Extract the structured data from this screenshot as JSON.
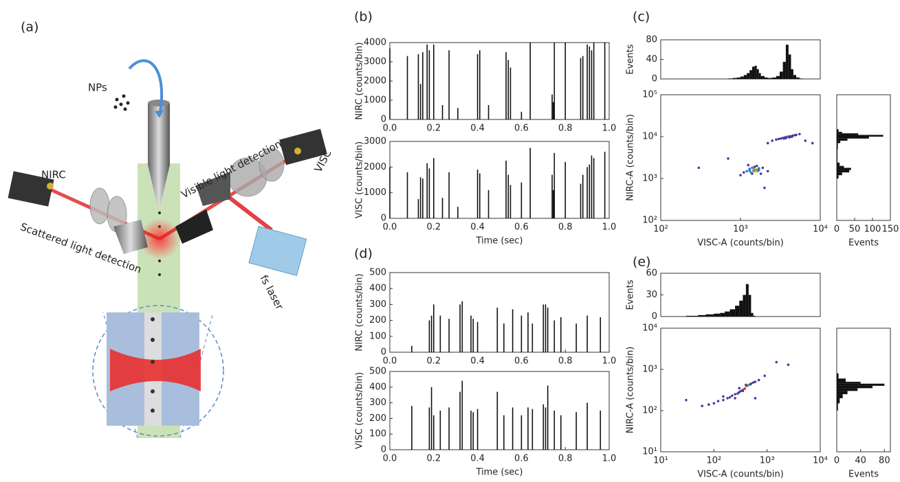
{
  "figure": {
    "panel_labels": [
      "(a)",
      "(b)",
      "(c)",
      "(d)",
      "(e)"
    ]
  },
  "diagram": {
    "labels": [
      "NPs",
      "NIRC",
      "Scattered light detection",
      "Visible light detection",
      "VISC",
      "fs laser"
    ]
  },
  "chart_data": [
    {
      "type": "stem",
      "color": "#111",
      "ylabel": "NIRC (counts/bin)",
      "x": [
        0.0,
        0.08,
        0.13,
        0.14,
        0.15,
        0.17,
        0.18,
        0.2,
        0.24,
        0.27,
        0.31,
        0.4,
        0.41,
        0.45,
        0.53,
        0.54,
        0.55,
        0.6,
        0.64,
        0.74,
        0.745,
        0.75,
        0.8,
        0.87,
        0.88,
        0.9,
        0.91,
        0.92,
        0.93,
        0.98
      ],
      "values": [
        3700,
        3300,
        3400,
        1850,
        3500,
        3900,
        3600,
        3900,
        750,
        3600,
        600,
        3400,
        3600,
        750,
        3500,
        3100,
        2700,
        400,
        4000,
        1300,
        900,
        4000,
        4000,
        3200,
        3300,
        3900,
        3800,
        3600,
        4000,
        4000
      ],
      "xlim": [
        0,
        1
      ],
      "xticks": [
        {
          "value": 0,
          "label": "0.0"
        },
        {
          "value": 0.2,
          "label": "0.2"
        },
        {
          "value": 0.4,
          "label": "0.4"
        },
        {
          "value": 0.6,
          "label": "0.6"
        },
        {
          "value": 0.8,
          "label": "0.8"
        },
        {
          "value": 1,
          "label": "1.0"
        }
      ],
      "ylim": [
        0,
        4000
      ],
      "yticks": [
        0,
        1000,
        2000,
        3000,
        4000
      ]
    },
    {
      "type": "stem",
      "color": "#111",
      "ylabel": "VISC (counts/bin)",
      "xlabel": "Time (sec)",
      "x": [
        0.0,
        0.08,
        0.13,
        0.14,
        0.15,
        0.17,
        0.18,
        0.2,
        0.24,
        0.27,
        0.31,
        0.4,
        0.41,
        0.45,
        0.53,
        0.54,
        0.55,
        0.6,
        0.64,
        0.74,
        0.745,
        0.75,
        0.8,
        0.87,
        0.88,
        0.9,
        0.91,
        0.92,
        0.93,
        0.98
      ],
      "values": [
        2000,
        1800,
        750,
        1600,
        1550,
        2150,
        1950,
        2350,
        800,
        1800,
        450,
        1900,
        1750,
        1100,
        2250,
        1700,
        1300,
        1400,
        2750,
        1700,
        1100,
        2550,
        2200,
        1350,
        1700,
        2000,
        2100,
        2450,
        2350,
        2600
      ],
      "xlim": [
        0,
        1
      ],
      "xticks": [
        {
          "value": 0,
          "label": "0.0"
        },
        {
          "value": 0.2,
          "label": "0.2"
        },
        {
          "value": 0.4,
          "label": "0.4"
        },
        {
          "value": 0.6,
          "label": "0.6"
        },
        {
          "value": 0.8,
          "label": "0.8"
        },
        {
          "value": 1,
          "label": "1.0"
        }
      ],
      "ylim": [
        0,
        3000
      ],
      "yticks": [
        0,
        1000,
        2000,
        3000
      ]
    },
    {
      "type": "histogram",
      "color": "#111",
      "ylabel": "Events",
      "xlog": true,
      "bins": [
        700,
        800,
        900,
        1000,
        1100,
        1200,
        1300,
        1400,
        1500,
        1600,
        1700,
        1800,
        2000,
        2200,
        2500,
        2800,
        3100,
        3400,
        3700,
        4000,
        4300,
        4600,
        5000,
        5500,
        6000
      ],
      "values": [
        1,
        2,
        3,
        5,
        8,
        12,
        18,
        25,
        27,
        20,
        12,
        6,
        3,
        2,
        3,
        6,
        15,
        35,
        70,
        50,
        20,
        8,
        3,
        1
      ],
      "xlim": [
        100,
        10000
      ],
      "ylim": [
        0,
        80
      ],
      "yticks": [
        0,
        40,
        80
      ]
    },
    {
      "type": "scatter",
      "xlabel": "VISC-A (counts/bin)",
      "ylabel": "NIRC-A (counts/bin)",
      "xlog": true,
      "ylog": true,
      "x": [
        1200,
        1300,
        1350,
        1400,
        1450,
        1500,
        1520,
        1550,
        1600,
        1650,
        1700,
        1400,
        1500,
        1600,
        1300,
        1550,
        1450,
        1700,
        1100,
        1900,
        1000,
        2200,
        1250,
        1800,
        2500,
        2800,
        3000,
        3200,
        3400,
        3600,
        3800,
        4000,
        4200,
        4500,
        4800,
        5000,
        3500,
        3900,
        4100,
        4400,
        5500,
        6500,
        2200,
        3700,
        300,
        700,
        8000,
        2000
      ],
      "values": [
        1500,
        1700,
        1400,
        1800,
        1600,
        1650,
        1550,
        1700,
        1600,
        1500,
        1750,
        1300,
        1900,
        2000,
        1550,
        1450,
        1500,
        1600,
        1400,
        1800,
        1200,
        1500,
        2100,
        1300,
        8000,
        8500,
        8800,
        9000,
        9300,
        9500,
        9800,
        10000,
        10200,
        10500,
        10800,
        11000,
        9000,
        10000,
        9600,
        9900,
        11500,
        8000,
        7000,
        9200,
        1800,
        3000,
        7000,
        600
      ],
      "colors": [
        "#2f6fd0",
        "#2f6fd0",
        "#2ab0a0",
        "#2f6fd0",
        "#f0d020",
        "#e03020",
        "#e03020",
        "#f0d020",
        "#2ab0a0",
        "#2ab0a0",
        "#2f6fd0",
        "#4b3a9a",
        "#4b3a9a",
        "#4b3a9a",
        "#2f6fd0",
        "#f0d020",
        "#2ab0a0",
        "#2f6fd0",
        "#4b3a9a",
        "#4b3a9a",
        "#4b3a9a",
        "#4b3a9a",
        "#4b3a9a",
        "#4b3a9a",
        "#4b3a9a",
        "#4b3a9a",
        "#4b3a9a",
        "#4b3a9a",
        "#4b3a9a",
        "#4b3a9a",
        "#4b3a9a",
        "#2f6fd0",
        "#4b3a9a",
        "#4b3a9a",
        "#4b3a9a",
        "#4b3a9a",
        "#4b3a9a",
        "#2f6fd0",
        "#4b3a9a",
        "#4b3a9a",
        "#4b3a9a",
        "#4b3a9a",
        "#4b3a9a",
        "#4b3a9a",
        "#4b3a9a",
        "#4b3a9a",
        "#4b3a9a",
        "#4b3a9a"
      ],
      "xlim": [
        100,
        10000
      ],
      "xticks": [
        {
          "value": 100,
          "label": "10²"
        },
        {
          "value": 1000,
          "label": "10³"
        },
        {
          "value": 10000,
          "label": "10⁴"
        }
      ],
      "ylim": [
        100,
        100000
      ],
      "yticks": [
        {
          "value": 100,
          "label": "10²"
        },
        {
          "value": 1000,
          "label": "10³"
        },
        {
          "value": 10000,
          "label": "10⁴"
        },
        {
          "value": 100000,
          "label": "10⁵"
        }
      ]
    },
    {
      "type": "histogram",
      "orientation": "horizontal",
      "color": "#111",
      "xlabel": "Events",
      "ylog": true,
      "bins": [
        1000,
        1200,
        1400,
        1600,
        1800,
        2000,
        2400,
        5000,
        7000,
        8000,
        9000,
        10000,
        11000,
        12000,
        13000,
        15000
      ],
      "values": [
        5,
        15,
        35,
        40,
        20,
        8,
        2,
        3,
        10,
        30,
        90,
        130,
        60,
        15,
        5
      ],
      "xlim": [
        0,
        150
      ],
      "xticks": [
        0,
        50,
        100,
        150
      ],
      "ylim": [
        100,
        100000
      ]
    },
    {
      "type": "stem",
      "color": "#111",
      "ylabel": "NIRC (counts/bin)",
      "x": [
        0.1,
        0.18,
        0.19,
        0.2,
        0.23,
        0.27,
        0.32,
        0.33,
        0.37,
        0.38,
        0.4,
        0.49,
        0.52,
        0.56,
        0.6,
        0.63,
        0.65,
        0.7,
        0.71,
        0.72,
        0.75,
        0.78,
        0.85,
        0.9,
        0.96
      ],
      "values": [
        40,
        200,
        230,
        300,
        230,
        210,
        300,
        320,
        230,
        210,
        190,
        280,
        180,
        270,
        230,
        250,
        180,
        300,
        300,
        280,
        200,
        220,
        180,
        230,
        220
      ],
      "xlim": [
        0,
        1
      ],
      "xticks": [
        {
          "value": 0,
          "label": "0.0"
        },
        {
          "value": 0.2,
          "label": "0.2"
        },
        {
          "value": 0.4,
          "label": "0.4"
        },
        {
          "value": 0.6,
          "label": "0.6"
        },
        {
          "value": 0.8,
          "label": "0.8"
        },
        {
          "value": 1,
          "label": "1.0"
        }
      ],
      "ylim": [
        0,
        500
      ],
      "yticks": [
        0,
        100,
        200,
        300,
        400,
        500
      ]
    },
    {
      "type": "stem",
      "color": "#111",
      "ylabel": "VISC (counts/bin)",
      "xlabel": "Time (sec)",
      "x": [
        0.1,
        0.18,
        0.19,
        0.2,
        0.23,
        0.27,
        0.32,
        0.33,
        0.37,
        0.38,
        0.4,
        0.49,
        0.52,
        0.56,
        0.6,
        0.63,
        0.65,
        0.7,
        0.71,
        0.72,
        0.75,
        0.78,
        0.85,
        0.9,
        0.96
      ],
      "values": [
        280,
        270,
        400,
        220,
        250,
        270,
        370,
        440,
        250,
        240,
        260,
        370,
        220,
        270,
        220,
        270,
        260,
        290,
        270,
        410,
        250,
        220,
        240,
        300,
        250
      ],
      "xlim": [
        0,
        1
      ],
      "xticks": [
        {
          "value": 0,
          "label": "0.0"
        },
        {
          "value": 0.2,
          "label": "0.2"
        },
        {
          "value": 0.4,
          "label": "0.4"
        },
        {
          "value": 0.6,
          "label": "0.6"
        },
        {
          "value": 0.8,
          "label": "0.8"
        },
        {
          "value": 1,
          "label": "1.0"
        }
      ],
      "ylim": [
        0,
        500
      ],
      "yticks": [
        0,
        100,
        200,
        300,
        400,
        500
      ]
    },
    {
      "type": "histogram",
      "color": "#111",
      "ylabel": "Events",
      "xlog": true,
      "bins": [
        30,
        50,
        70,
        100,
        130,
        160,
        200,
        250,
        300,
        350,
        400,
        450,
        500,
        550,
        600
      ],
      "values": [
        1,
        2,
        3,
        4,
        5,
        7,
        10,
        15,
        22,
        30,
        45,
        30,
        5,
        1
      ],
      "xlim": [
        10,
        10000
      ],
      "ylim": [
        0,
        60
      ],
      "yticks": [
        0,
        30,
        60
      ]
    },
    {
      "type": "scatter",
      "xlabel": "VISC-A (counts/bin)",
      "ylabel": "NIRC-A (counts/bin)",
      "xlog": true,
      "ylog": true,
      "x": [
        60,
        80,
        100,
        120,
        150,
        180,
        200,
        220,
        250,
        280,
        300,
        320,
        350,
        380,
        400,
        420,
        450,
        480,
        500,
        550,
        600,
        700,
        900,
        150,
        250,
        350,
        300,
        400,
        2500,
        1500,
        30,
        600
      ],
      "values": [
        130,
        140,
        150,
        170,
        180,
        200,
        210,
        230,
        250,
        260,
        280,
        300,
        320,
        340,
        380,
        400,
        420,
        430,
        450,
        480,
        500,
        550,
        700,
        220,
        200,
        300,
        350,
        420,
        1300,
        1500,
        180,
        200
      ],
      "colors": [
        "#4b3a9a",
        "#4b3a9a",
        "#4b3a9a",
        "#4b3a9a",
        "#4b3a9a",
        "#4b3a9a",
        "#4b3a9a",
        "#4b3a9a",
        "#4b3a9a",
        "#4b3a9a",
        "#4b3a9a",
        "#4b3a9a",
        "#2f6fd0",
        "#e03020",
        "#f0d020",
        "#e03020",
        "#2ab0a0",
        "#2f6fd0",
        "#4b3a9a",
        "#4b3a9a",
        "#4b3a9a",
        "#4b3a9a",
        "#4b3a9a",
        "#4b3a9a",
        "#4b3a9a",
        "#4b3a9a",
        "#4b3a9a",
        "#4b3a9a",
        "#4b3a9a",
        "#4b3a9a",
        "#4b3a9a",
        "#4b3a9a"
      ],
      "xlim": [
        10,
        10000
      ],
      "xticks": [
        {
          "value": 10,
          "label": "10¹"
        },
        {
          "value": 100,
          "label": "10²"
        },
        {
          "value": 1000,
          "label": "10³"
        },
        {
          "value": 10000,
          "label": "10⁴"
        }
      ],
      "ylim": [
        10,
        10000
      ],
      "yticks": [
        {
          "value": 10,
          "label": "10¹"
        },
        {
          "value": 100,
          "label": "10²"
        },
        {
          "value": 1000,
          "label": "10³"
        },
        {
          "value": 10000,
          "label": "10⁴"
        }
      ]
    },
    {
      "type": "histogram",
      "orientation": "horizontal",
      "color": "#111",
      "xlabel": "Events",
      "ylog": true,
      "bins": [
        100,
        150,
        200,
        250,
        300,
        350,
        400,
        450,
        500,
        600,
        800
      ],
      "values": [
        2,
        5,
        10,
        18,
        35,
        60,
        80,
        40,
        15,
        3
      ],
      "xlim": [
        0,
        90
      ],
      "xticks": [
        0,
        40,
        80
      ],
      "ylim": [
        10,
        10000
      ]
    }
  ]
}
